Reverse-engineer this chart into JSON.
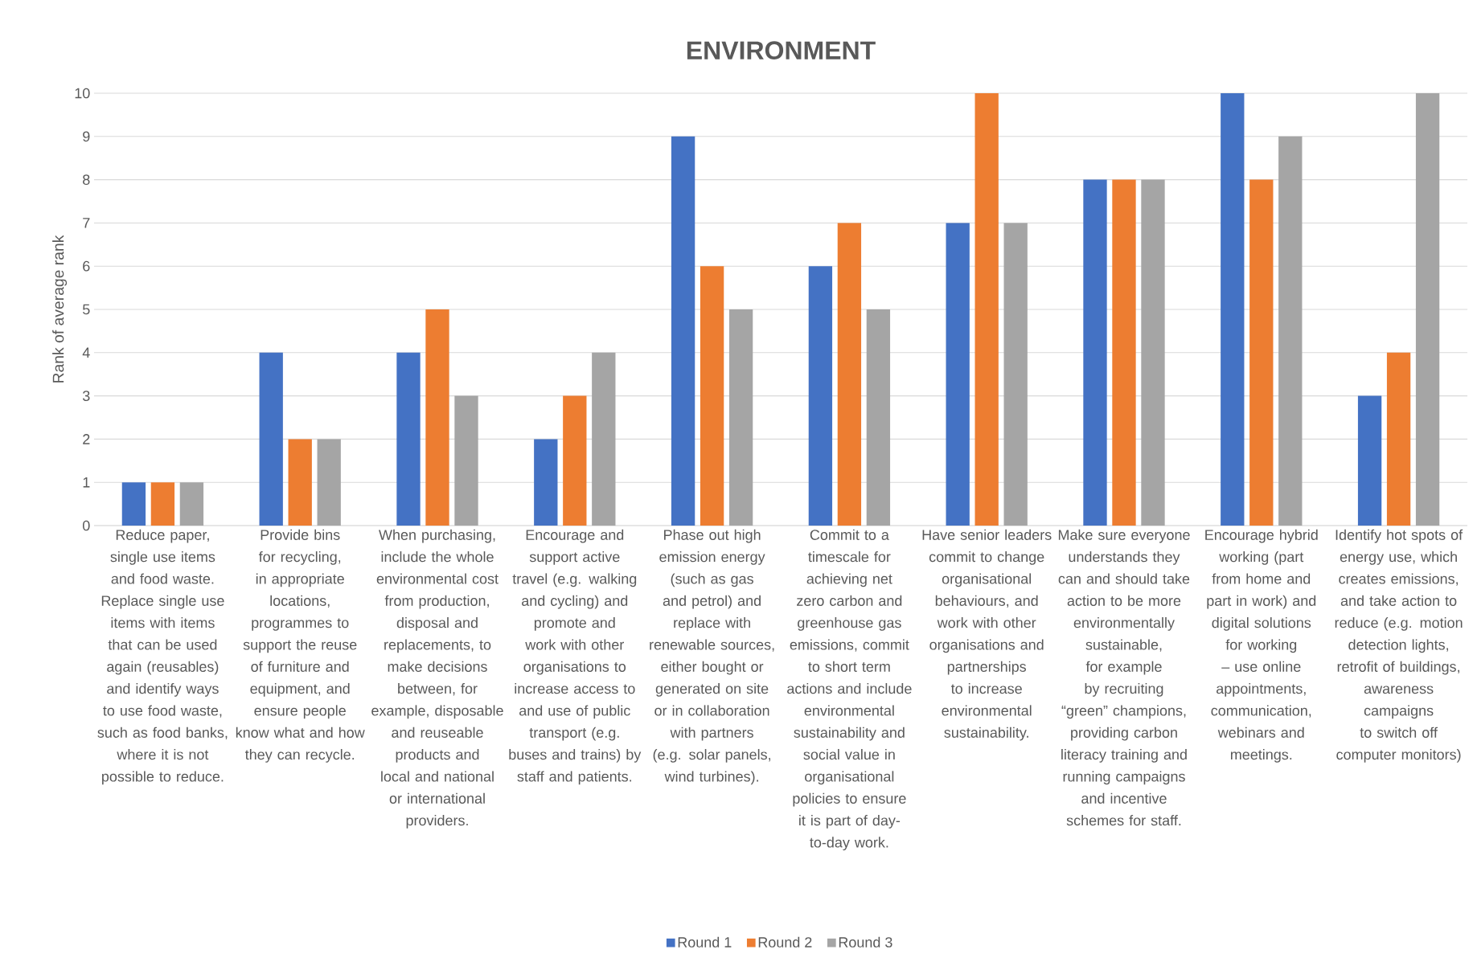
{
  "chart_data": {
    "type": "bar",
    "title": "ENVIRONMENT",
    "ylabel": "Rank of average rank",
    "categories": [
      "Reduce paper, single use items and food waste. Replace single use items with items that can be used again (reusables) and identify ways to use food waste, such as food banks, where it is not possible to reduce.",
      "Provide bins for recycling, in appropriate locations, programmes to support the reuse of furniture and equipment, and ensure people know what and how they can recycle.",
      "When purchasing, include the whole environmental cost from production, disposal and replacements, to make decisions between, for example, disposable and reuseable products and local and national or international providers.",
      "Encourage and support active travel (e.g. walking and cycling) and promote and work with other organisations to increase access to and use of public transport (e.g. buses and trains) by staff and patients.",
      "Phase out high emission energy (such as gas and petrol) and replace with renewable sources, either bought or generated on site or in collaboration with partners (e.g. solar panels, wind turbines).",
      "Commit to a timescale for achieving net zero carbon and greenhouse gas emissions, commit to short term actions and include environmental sustainability and social value in organisational policies to ensure it is part of day-to-day work.",
      "Have senior leaders commit to change organisational behaviours, and work with other organisations and partnerships to increase environmental sustainability.",
      "Make sure everyone understands they can and should take action to be more environmentally sustainable, for example by recruiting “green” champions, providing carbon literacy training and running campaigns and incentive schemes for staff.",
      "Encourage hybrid working (part from home and part in work) and digital solutions for working – use online appointments, communication, webinars and meetings.",
      "Identify hot spots of energy use, which creates emissions, and take action to reduce (e.g. motion detection lights, retrofit of buildings, awareness campaigns to switch off computer monitors)"
    ],
    "series": [
      {
        "name": "Round 1",
        "color": "#4472c4",
        "values": [
          1,
          4,
          4,
          2,
          9,
          6,
          7,
          8,
          10,
          3
        ]
      },
      {
        "name": "Round 2",
        "color": "#ed7d31",
        "values": [
          1,
          2,
          5,
          3,
          6,
          7,
          10,
          8,
          8,
          4
        ]
      },
      {
        "name": "Round 3",
        "color": "#a5a5a5",
        "values": [
          1,
          2,
          3,
          4,
          5,
          5,
          7,
          8,
          9,
          10
        ]
      }
    ],
    "ylim": [
      0,
      10
    ],
    "yticks": [
      0,
      1,
      2,
      3,
      4,
      5,
      6,
      7,
      8,
      9,
      10
    ],
    "grid": "y",
    "legend": "bottom"
  }
}
